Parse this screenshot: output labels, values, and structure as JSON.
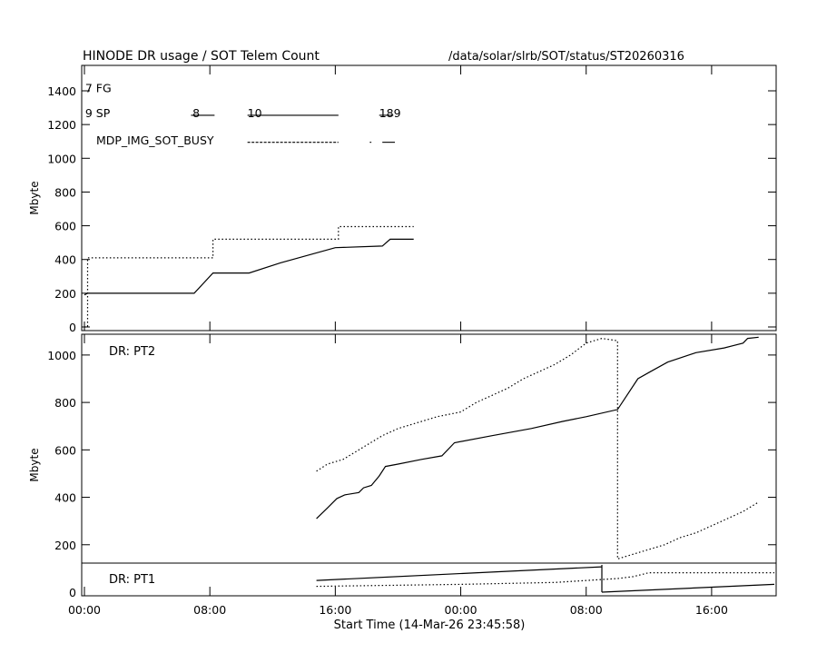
{
  "chart_data": {
    "type": "line",
    "header_title": "HINODE DR usage / SOT Telem Count",
    "header_path": "/data/solar/slrb/SOT/status/ST20260316",
    "xlabel": "Start Time (14-Mar-26 23:45:58)",
    "x_unit": "hours since 00:00",
    "xlim": [
      0,
      44
    ],
    "x_ticks": [
      {
        "value": 0,
        "label": "00:00"
      },
      {
        "value": 8,
        "label": "08:00"
      },
      {
        "value": 16,
        "label": "16:00"
      },
      {
        "value": 24,
        "label": "00:00"
      },
      {
        "value": 32,
        "label": "08:00"
      },
      {
        "value": 40,
        "label": "16:00"
      }
    ],
    "panels": [
      {
        "name": "SOT Telem Count",
        "ylabel": "Mbyte",
        "ylim": [
          0,
          1540
        ],
        "yticks": [
          0,
          200,
          400,
          600,
          800,
          1000,
          1200,
          1400
        ],
        "annotations": [
          {
            "text": "7 FG",
            "x": 0.05,
            "y": 1420
          },
          {
            "text": "9 SP",
            "x": 0.05,
            "y": 1270
          },
          {
            "text": "8",
            "x": 6.9,
            "y": 1270
          },
          {
            "text": "10",
            "x": 10.4,
            "y": 1270
          },
          {
            "text": "189",
            "x": 18.8,
            "y": 1270
          },
          {
            "text": "MDP_IMG_SOT_BUSY",
            "x": 0.75,
            "y": 1110
          }
        ],
        "busy_segments": [
          {
            "x": [
              6.8,
              8.3
            ],
            "y": 1255,
            "style": "solid"
          },
          {
            "x": [
              10.4,
              16.2
            ],
            "y": 1255,
            "style": "solid"
          },
          {
            "x": [
              18.8,
              19.7
            ],
            "y": 1255,
            "style": "solid"
          },
          {
            "x": [
              10.4,
              16.2
            ],
            "y": 1095,
            "style": "dash"
          },
          {
            "x": [
              18.2,
              18.3
            ],
            "y": 1095,
            "style": "dash"
          },
          {
            "x": [
              19.0,
              19.8
            ],
            "y": 1095,
            "style": "solid"
          }
        ],
        "series": [
          {
            "style": "solid",
            "x": [
              0,
              0.2,
              7.0,
              8.2,
              10.5,
              12.5,
              16.0,
              19.0,
              19.5,
              21.0
            ],
            "y": [
              190,
              200,
              200,
              320,
              320,
              380,
              470,
              480,
              520,
              520
            ]
          },
          {
            "style": "dot",
            "x": [
              0,
              0.2,
              0.2,
              8.2,
              8.2,
              16.2,
              16.2,
              21.0
            ],
            "y": [
              0,
              0,
              410,
              410,
              520,
              520,
              595,
              595
            ]
          }
        ]
      },
      {
        "name": "DR: PT2",
        "label": "DR: PT2",
        "ylabel": "Mbyte",
        "ylim": [
          0,
          1080
        ],
        "yticks": [
          0,
          200,
          400,
          600,
          800,
          1000
        ],
        "series": [
          {
            "style": "solid",
            "x": [
              14.8,
              15.5,
              16.1,
              16.6,
              17.5,
              17.8,
              18.3,
              18.8,
              19.2,
              20.0,
              21.5,
              22.8,
              23.6,
              26.0,
              28.5,
              30.5,
              32.0,
              34.0,
              35.3,
              36.1,
              37.2,
              39.0,
              40.8,
              42.0,
              42.3,
              43.0
            ],
            "y": [
              310,
              355,
              395,
              410,
              420,
              440,
              450,
              490,
              530,
              540,
              560,
              575,
              630,
              660,
              690,
              720,
              740,
              770,
              900,
              930,
              970,
              1010,
              1030,
              1050,
              1070,
              1075
            ]
          },
          {
            "style": "dot",
            "x": [
              14.8,
              15.5,
              16.5,
              17.0,
              18.0,
              19.0,
              20.0,
              21.5,
              22.5,
              24.0,
              25.0,
              26.0,
              27.0,
              28.0,
              29.0,
              30.0,
              31.0,
              32.0,
              33.0,
              34.0,
              34.0,
              35.0,
              36.0,
              37.0,
              38.0,
              39.0,
              40.0,
              41.0,
              42.0,
              43.0
            ],
            "y": [
              510,
              540,
              560,
              580,
              620,
              660,
              690,
              720,
              740,
              760,
              800,
              830,
              860,
              900,
              930,
              960,
              1000,
              1050,
              1070,
              1060,
              140,
              160,
              180,
              200,
              230,
              250,
              280,
              310,
              340,
              380
            ]
          }
        ]
      },
      {
        "name": "DR: PT1",
        "label": "DR: PT1",
        "ylabel": "",
        "ylim": [
          0,
          140
        ],
        "series": [
          {
            "style": "solid",
            "x": [
              14.8,
              33.0
            ],
            "y": [
              60,
              130
            ]
          },
          {
            "style": "solid",
            "x": [
              33.0,
              33.0
            ],
            "y": [
              0,
              140
            ]
          },
          {
            "style": "solid",
            "x": [
              33.0,
              44.0
            ],
            "y": [
              0,
              40
            ]
          },
          {
            "style": "dot",
            "x": [
              14.8,
              24.0,
              30.0,
              34.0,
              35.0,
              36.0,
              44.0
            ],
            "y": [
              30,
              40,
              50,
              70,
              80,
              100,
              100
            ]
          }
        ]
      }
    ]
  }
}
